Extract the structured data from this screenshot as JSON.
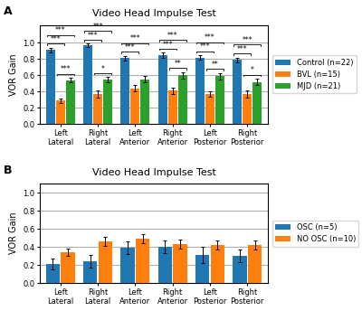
{
  "chart_data": [
    {
      "type": "bar",
      "title": "Video Head Impulse Test",
      "ylabel": "VOR Gain",
      "categories": [
        "Left\nLateral",
        "Right\nLateral",
        "Left\nAnterior",
        "Right\nAnterior",
        "Left\nPosterior",
        "Right\nPosterior"
      ],
      "series": [
        {
          "name": "Control (n=22)",
          "values": [
            0.91,
            0.97,
            0.81,
            0.85,
            0.82,
            0.79
          ],
          "errors": [
            0.03,
            0.02,
            0.03,
            0.03,
            0.03,
            0.03
          ]
        },
        {
          "name": "BVL (n=15)",
          "values": [
            0.29,
            0.37,
            0.44,
            0.41,
            0.37,
            0.37
          ],
          "errors": [
            0.03,
            0.04,
            0.04,
            0.04,
            0.03,
            0.04
          ]
        },
        {
          "name": "MJD (n=21)",
          "values": [
            0.54,
            0.55,
            0.55,
            0.6,
            0.59,
            0.52
          ],
          "errors": [
            0.03,
            0.03,
            0.04,
            0.04,
            0.04,
            0.04
          ]
        }
      ],
      "ylim": [
        0.0,
        1.22
      ],
      "yticks": [
        0.0,
        0.2,
        0.4,
        0.6,
        0.8,
        1.0
      ],
      "grid": true,
      "legend": "right",
      "annotations": [
        {
          "text": "A"
        },
        {
          "text": "***",
          "category": "Left\nLateral",
          "between": [
            "BVL (n=15)",
            "MJD (n=21)"
          ]
        },
        {
          "text": "***",
          "category": "Left\nLateral",
          "between": [
            "Control (n=22)",
            "BVL (n=15)"
          ]
        },
        {
          "text": "***",
          "category": "Left\nLateral",
          "between": [
            "Control (n=22)",
            "MJD (n=21)"
          ]
        },
        {
          "text": "*",
          "category": "Right\nLateral",
          "between": [
            "BVL (n=15)",
            "MJD (n=21)"
          ]
        },
        {
          "text": "***",
          "category": "Right\nLateral",
          "between": [
            "Control (n=22)",
            "BVL (n=15)"
          ]
        },
        {
          "text": "***",
          "category": "Right\nLateral",
          "between": [
            "Control (n=22)",
            "MJD (n=21)"
          ]
        },
        {
          "text": "***",
          "category": "Left\nAnterior",
          "between": [
            "Control (n=22)",
            "BVL (n=15)"
          ]
        },
        {
          "text": "***",
          "category": "Left\nAnterior",
          "between": [
            "Control (n=22)",
            "MJD (n=21)"
          ]
        },
        {
          "text": "**",
          "category": "Right\nAnterior",
          "between": [
            "BVL (n=15)",
            "MJD (n=21)"
          ]
        },
        {
          "text": "***",
          "category": "Right\nAnterior",
          "between": [
            "Control (n=22)",
            "BVL (n=15)"
          ]
        },
        {
          "text": "***",
          "category": "Right\nAnterior",
          "between": [
            "Control (n=22)",
            "MJD (n=21)"
          ]
        },
        {
          "text": "**",
          "category": "Left\nPosterior",
          "between": [
            "BVL (n=15)",
            "MJD (n=21)"
          ]
        },
        {
          "text": "***",
          "category": "Left\nPosterior",
          "between": [
            "Control (n=22)",
            "BVL (n=15)"
          ]
        },
        {
          "text": "***",
          "category": "Left\nPosterior",
          "between": [
            "Control (n=22)",
            "MJD (n=21)"
          ]
        },
        {
          "text": "*",
          "category": "Right\nPosterior",
          "between": [
            "BVL (n=15)",
            "MJD (n=21)"
          ]
        },
        {
          "text": "***",
          "category": "Right\nPosterior",
          "between": [
            "Control (n=22)",
            "BVL (n=15)"
          ]
        },
        {
          "text": "***",
          "category": "Right\nPosterior",
          "between": [
            "Control (n=22)",
            "MJD (n=21)"
          ]
        }
      ]
    },
    {
      "type": "bar",
      "title": "Video Head Impulse Test",
      "ylabel": "VOR Gain",
      "categories": [
        "Left\nLateral",
        "Right\nLateral",
        "Left\nAnterior",
        "Right\nAnterior",
        "Left\nPosterior",
        "Right\nPosterior"
      ],
      "series": [
        {
          "name": "OSC (n=5)",
          "values": [
            0.21,
            0.24,
            0.39,
            0.4,
            0.31,
            0.3
          ],
          "errors": [
            0.06,
            0.07,
            0.07,
            0.07,
            0.09,
            0.07
          ]
        },
        {
          "name": "NO OSC (n=10)",
          "values": [
            0.34,
            0.46,
            0.49,
            0.43,
            0.42,
            0.42
          ],
          "errors": [
            0.04,
            0.05,
            0.05,
            0.05,
            0.05,
            0.05
          ]
        }
      ],
      "ylim": [
        0.0,
        1.1
      ],
      "yticks": [
        0.0,
        0.2,
        0.4,
        0.6,
        0.8,
        1.0
      ],
      "grid": true,
      "legend": "right",
      "annotations": [
        {
          "text": "B"
        }
      ]
    }
  ]
}
